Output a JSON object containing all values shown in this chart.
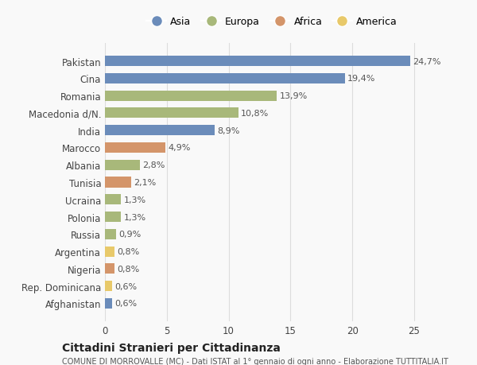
{
  "categories": [
    "Pakistan",
    "Cina",
    "Romania",
    "Macedonia d/N.",
    "India",
    "Marocco",
    "Albania",
    "Tunisia",
    "Ucraina",
    "Polonia",
    "Russia",
    "Argentina",
    "Nigeria",
    "Rep. Dominicana",
    "Afghanistan"
  ],
  "values": [
    24.7,
    19.4,
    13.9,
    10.8,
    8.9,
    4.9,
    2.8,
    2.1,
    1.3,
    1.3,
    0.9,
    0.8,
    0.8,
    0.6,
    0.6
  ],
  "labels": [
    "24,7%",
    "19,4%",
    "13,9%",
    "10,8%",
    "8,9%",
    "4,9%",
    "2,8%",
    "2,1%",
    "1,3%",
    "1,3%",
    "0,9%",
    "0,8%",
    "0,8%",
    "0,6%",
    "0,6%"
  ],
  "continents": [
    "Asia",
    "Asia",
    "Europa",
    "Europa",
    "Asia",
    "Africa",
    "Europa",
    "Africa",
    "Europa",
    "Europa",
    "Europa",
    "America",
    "Africa",
    "America",
    "Asia"
  ],
  "continent_colors": {
    "Asia": "#6b8cba",
    "Europa": "#a8b87a",
    "Africa": "#d4956a",
    "America": "#e8c96a"
  },
  "legend_order": [
    "Asia",
    "Europa",
    "Africa",
    "America"
  ],
  "title1": "Cittadini Stranieri per Cittadinanza",
  "title2": "COMUNE DI MORROVALLE (MC) - Dati ISTAT al 1° gennaio di ogni anno - Elaborazione TUTTITALIA.IT",
  "xlim": [
    0,
    27
  ],
  "xticks": [
    0,
    5,
    10,
    15,
    20,
    25
  ],
  "background_color": "#f9f9f9",
  "bar_height": 0.6,
  "grid_color": "#dddddd"
}
